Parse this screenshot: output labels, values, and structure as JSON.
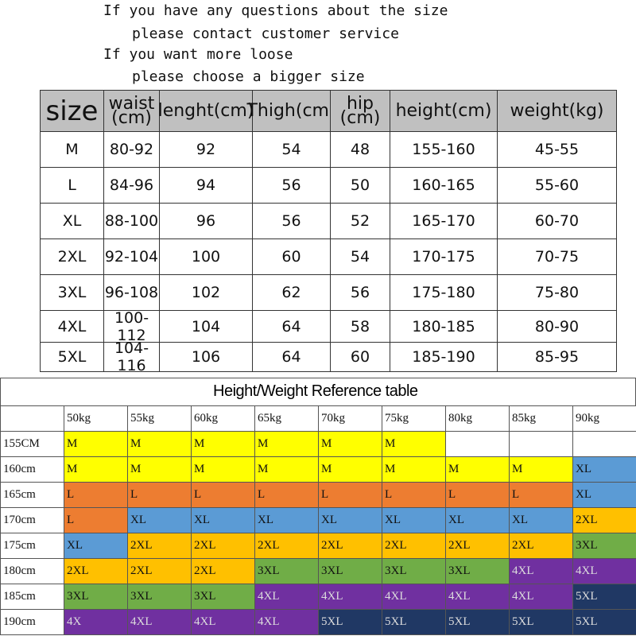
{
  "notes": [
    "If you have any questions about the size",
    "please contact customer service",
    "If you want more loose",
    "please choose a bigger size"
  ],
  "size_table": {
    "header": [
      "size",
      "waist\n(cm)",
      "lenght(cm)",
      "Thigh(cm)",
      "hip\n(cm)",
      "height(cm)",
      "weight(kg)"
    ],
    "rows": [
      [
        "M",
        "80-92",
        "92",
        "54",
        "48",
        "155-160",
        "45-55"
      ],
      [
        "L",
        "84-96",
        "94",
        "56",
        "50",
        "160-165",
        "55-60"
      ],
      [
        "XL",
        "88-100",
        "96",
        "56",
        "52",
        "165-170",
        "60-70"
      ],
      [
        "2XL",
        "92-104",
        "100",
        "60",
        "54",
        "170-175",
        "70-75"
      ],
      [
        "3XL",
        "96-108",
        "102",
        "62",
        "56",
        "175-180",
        "75-80"
      ],
      [
        "4XL",
        "100-112",
        "104",
        "64",
        "58",
        "180-185",
        "80-90"
      ],
      [
        "5XL",
        "104-116",
        "106",
        "64",
        "60",
        "185-190",
        "85-95"
      ]
    ]
  },
  "reference_table": {
    "title": "Height/Weight Reference table",
    "weights": [
      "50kg",
      "55kg",
      "60kg",
      "65kg",
      "70kg",
      "75kg",
      "80kg",
      "85kg",
      "90kg"
    ],
    "rows": [
      {
        "height": "155CM",
        "cells": [
          {
            "text": "M",
            "color": "#ffff00"
          },
          {
            "text": "M",
            "color": "#ffff00"
          },
          {
            "text": "M",
            "color": "#ffff00"
          },
          {
            "text": "M",
            "color": "#ffff00"
          },
          {
            "text": "M",
            "color": "#ffff00"
          },
          {
            "text": "M",
            "color": "#ffff00"
          },
          null,
          null,
          null
        ]
      },
      {
        "height": "160cm",
        "cells": [
          {
            "text": "M",
            "color": "#ffff00"
          },
          {
            "text": "M",
            "color": "#ffff00"
          },
          {
            "text": "M",
            "color": "#ffff00"
          },
          {
            "text": "M",
            "color": "#ffff00"
          },
          {
            "text": "M",
            "color": "#ffff00"
          },
          {
            "text": "M",
            "color": "#ffff00"
          },
          {
            "text": "M",
            "color": "#ffff00"
          },
          {
            "text": "M",
            "color": "#ffff00"
          },
          {
            "text": "XL",
            "color": "#5b9bd5"
          }
        ]
      },
      {
        "height": "165cm",
        "cells": [
          {
            "text": "L",
            "color": "#ed7d31"
          },
          {
            "text": "L",
            "color": "#ed7d31"
          },
          {
            "text": "L",
            "color": "#ed7d31"
          },
          {
            "text": "L",
            "color": "#ed7d31"
          },
          {
            "text": "L",
            "color": "#ed7d31"
          },
          {
            "text": "L",
            "color": "#ed7d31"
          },
          {
            "text": "L",
            "color": "#ed7d31"
          },
          {
            "text": "L",
            "color": "#ed7d31"
          },
          {
            "text": "XL",
            "color": "#5b9bd5"
          }
        ]
      },
      {
        "height": "170cm",
        "cells": [
          {
            "text": "L",
            "color": "#ed7d31"
          },
          {
            "text": "XL",
            "color": "#5b9bd5"
          },
          {
            "text": "XL",
            "color": "#5b9bd5"
          },
          {
            "text": "XL",
            "color": "#5b9bd5"
          },
          {
            "text": "XL",
            "color": "#5b9bd5"
          },
          {
            "text": "XL",
            "color": "#5b9bd5"
          },
          {
            "text": "XL",
            "color": "#5b9bd5"
          },
          {
            "text": "XL",
            "color": "#5b9bd5"
          },
          {
            "text": "2XL",
            "color": "#ffc000"
          }
        ]
      },
      {
        "height": "175cm",
        "cells": [
          {
            "text": "XL",
            "color": "#5b9bd5"
          },
          {
            "text": "2XL",
            "color": "#ffc000"
          },
          {
            "text": "2XL",
            "color": "#ffc000"
          },
          {
            "text": "2XL",
            "color": "#ffc000"
          },
          {
            "text": "2XL",
            "color": "#ffc000"
          },
          {
            "text": "2XL",
            "color": "#ffc000"
          },
          {
            "text": "2XL",
            "color": "#ffc000"
          },
          {
            "text": "2XL",
            "color": "#ffc000"
          },
          {
            "text": "3XL",
            "color": "#70ad47"
          }
        ]
      },
      {
        "height": "180cm",
        "cells": [
          {
            "text": "2XL",
            "color": "#ffc000"
          },
          {
            "text": "2XL",
            "color": "#ffc000"
          },
          {
            "text": "2XL",
            "color": "#ffc000"
          },
          {
            "text": "3XL",
            "color": "#70ad47"
          },
          {
            "text": "3XL",
            "color": "#70ad47"
          },
          {
            "text": "3XL",
            "color": "#70ad47"
          },
          {
            "text": "3XL",
            "color": "#70ad47"
          },
          {
            "text": "4XL",
            "color": "#7030a0"
          },
          {
            "text": "4XL",
            "color": "#7030a0"
          }
        ]
      },
      {
        "height": "185cm",
        "cells": [
          {
            "text": "3XL",
            "color": "#70ad47"
          },
          {
            "text": "3XL",
            "color": "#70ad47"
          },
          {
            "text": "3XL",
            "color": "#70ad47"
          },
          {
            "text": "4XL",
            "color": "#7030a0"
          },
          {
            "text": "4XL",
            "color": "#7030a0"
          },
          {
            "text": "4XL",
            "color": "#7030a0"
          },
          {
            "text": "4XL",
            "color": "#7030a0"
          },
          {
            "text": "4XL",
            "color": "#7030a0"
          },
          {
            "text": "5XL",
            "color": "#203864"
          }
        ]
      },
      {
        "height": "190cm",
        "cells": [
          {
            "text": "4X",
            "color": "#7030a0"
          },
          {
            "text": "4XL",
            "color": "#7030a0"
          },
          {
            "text": "4XL",
            "color": "#7030a0"
          },
          {
            "text": "4XL",
            "color": "#7030a0"
          },
          {
            "text": "5XL",
            "color": "#203864"
          },
          {
            "text": "5XL",
            "color": "#203864"
          },
          {
            "text": "5XL",
            "color": "#203864"
          },
          {
            "text": "5XL",
            "color": "#203864"
          },
          {
            "text": "5XL",
            "color": "#203864"
          }
        ]
      }
    ]
  }
}
